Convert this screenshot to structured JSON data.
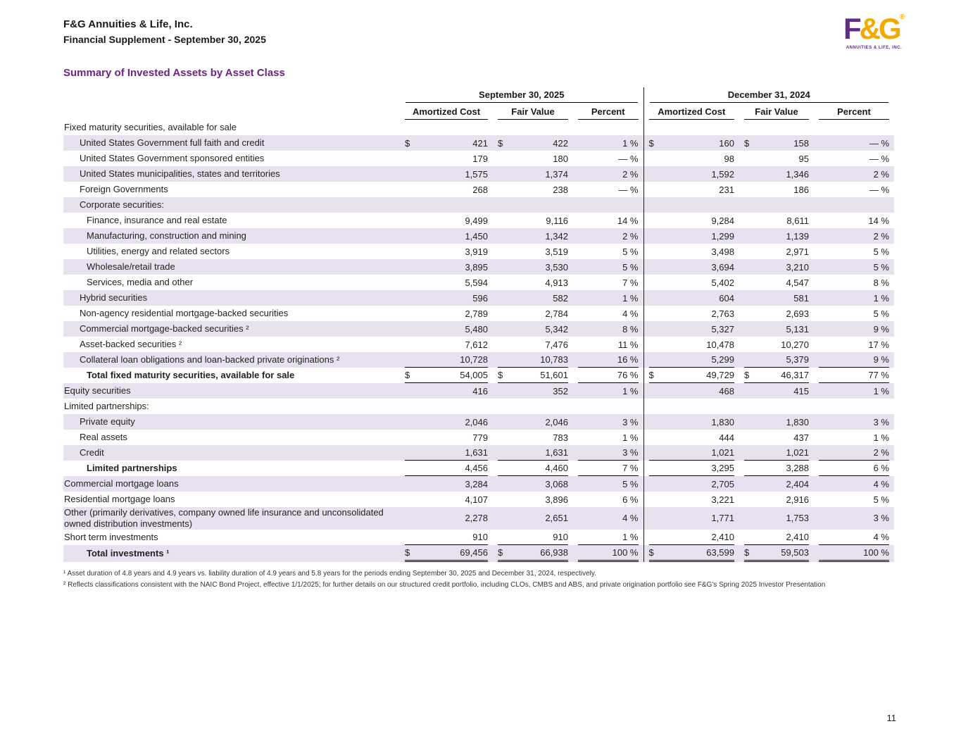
{
  "header": {
    "company": "F&G Annuities & Life, Inc.",
    "subtitle": "Financial Supplement - September 30, 2025"
  },
  "logo": {
    "part1": "F",
    "part2": "&G",
    "reg": "®",
    "tagline": "ANNUITIES & LIFE, INC."
  },
  "title": "Summary of Invested Assets by Asset Class",
  "colors": {
    "title_purple": "#6e2484",
    "row_shade": "#e8e2f0",
    "logo_purple": "#5f2c87",
    "logo_gold": "#f2a900"
  },
  "table": {
    "period_headers": [
      "September 30, 2025",
      "December 31, 2024"
    ],
    "column_headers": [
      "Amortized Cost",
      "Fair Value",
      "Percent"
    ],
    "rows": [
      {
        "label": "Fixed maturity securities, available for sale",
        "indent": 0,
        "values": null
      },
      {
        "label": "United States Government full faith and credit",
        "indent": 1,
        "dollars": true,
        "values": [
          "421",
          "422",
          "1 %",
          "160",
          "158",
          "— %"
        ]
      },
      {
        "label": "United States Government sponsored entities",
        "indent": 1,
        "values": [
          "179",
          "180",
          "— %",
          "98",
          "95",
          "— %"
        ]
      },
      {
        "label": "United States municipalities, states and territories",
        "indent": 1,
        "values": [
          "1,575",
          "1,374",
          "2 %",
          "1,592",
          "1,346",
          "2 %"
        ]
      },
      {
        "label": "Foreign Governments",
        "indent": 1,
        "values": [
          "268",
          "238",
          "— %",
          "231",
          "186",
          "— %"
        ]
      },
      {
        "label": "Corporate securities:",
        "indent": 1,
        "values": null
      },
      {
        "label": "Finance, insurance and real estate",
        "indent": 2,
        "values": [
          "9,499",
          "9,116",
          "14 %",
          "9,284",
          "8,611",
          "14 %"
        ]
      },
      {
        "label": "Manufacturing, construction and mining",
        "indent": 2,
        "values": [
          "1,450",
          "1,342",
          "2 %",
          "1,299",
          "1,139",
          "2 %"
        ]
      },
      {
        "label": "Utilities, energy and related sectors",
        "indent": 2,
        "values": [
          "3,919",
          "3,519",
          "5 %",
          "3,498",
          "2,971",
          "5 %"
        ]
      },
      {
        "label": "Wholesale/retail trade",
        "indent": 2,
        "values": [
          "3,895",
          "3,530",
          "5 %",
          "3,694",
          "3,210",
          "5 %"
        ]
      },
      {
        "label": "Services, media and other",
        "indent": 2,
        "values": [
          "5,594",
          "4,913",
          "7 %",
          "5,402",
          "4,547",
          "8 %"
        ]
      },
      {
        "label": "Hybrid securities",
        "indent": 1,
        "values": [
          "596",
          "582",
          "1 %",
          "604",
          "581",
          "1 %"
        ]
      },
      {
        "label": "Non-agency residential mortgage-backed securities",
        "indent": 1,
        "values": [
          "2,789",
          "2,784",
          "4 %",
          "2,763",
          "2,693",
          "5 %"
        ]
      },
      {
        "label": "Commercial mortgage-backed securities ²",
        "indent": 1,
        "values": [
          "5,480",
          "5,342",
          "8 %",
          "5,327",
          "5,131",
          "9 %"
        ]
      },
      {
        "label": "Asset-backed securities ²",
        "indent": 1,
        "values": [
          "7,612",
          "7,476",
          "11 %",
          "10,478",
          "10,270",
          "17 %"
        ]
      },
      {
        "label": "Collateral loan obligations and loan-backed private originations ²",
        "indent": 1,
        "values": [
          "10,728",
          "10,783",
          "16 %",
          "5,299",
          "5,379",
          "9 %"
        ],
        "rule": "below"
      },
      {
        "label": "Total fixed maturity securities, available for sale",
        "indent": 2,
        "bold": true,
        "dollars": true,
        "values": [
          "54,005",
          "51,601",
          "76 %",
          "49,729",
          "46,317",
          "77 %"
        ],
        "rule": "below"
      },
      {
        "label": "Equity securities",
        "indent": 0,
        "values": [
          "416",
          "352",
          "1 %",
          "468",
          "415",
          "1 %"
        ]
      },
      {
        "label": "Limited partnerships:",
        "indent": 0,
        "values": null
      },
      {
        "label": "Private equity",
        "indent": 1,
        "values": [
          "2,046",
          "2,046",
          "3 %",
          "1,830",
          "1,830",
          "3 %"
        ]
      },
      {
        "label": "Real assets",
        "indent": 1,
        "values": [
          "779",
          "783",
          "1 %",
          "444",
          "437",
          "1 %"
        ]
      },
      {
        "label": "Credit",
        "indent": 1,
        "values": [
          "1,631",
          "1,631",
          "3 %",
          "1,021",
          "1,021",
          "2 %"
        ],
        "rule": "below"
      },
      {
        "label": "Limited partnerships",
        "indent": 2,
        "bold": true,
        "values": [
          "4,456",
          "4,460",
          "7 %",
          "3,295",
          "3,288",
          "6 %"
        ],
        "rule": "below"
      },
      {
        "label": "Commercial mortgage loans",
        "indent": 0,
        "values": [
          "3,284",
          "3,068",
          "5 %",
          "2,705",
          "2,404",
          "4 %"
        ]
      },
      {
        "label": "Residential mortgage loans",
        "indent": 0,
        "values": [
          "4,107",
          "3,896",
          "6 %",
          "3,221",
          "2,916",
          "5 %"
        ]
      },
      {
        "label": "Other (primarily derivatives, company owned life insurance and unconsolidated owned distribution investments)",
        "indent": 0,
        "values": [
          "2,278",
          "2,651",
          "4 %",
          "1,771",
          "1,753",
          "3 %"
        ]
      },
      {
        "label": "Short term investments",
        "indent": 0,
        "values": [
          "910",
          "910",
          "1 %",
          "2,410",
          "2,410",
          "4 %"
        ],
        "rule": "below"
      },
      {
        "label": "Total investments ¹",
        "indent": 2,
        "bold": true,
        "dollars": true,
        "values": [
          "69,456",
          "66,938",
          "100 %",
          "63,599",
          "59,503",
          "100 %"
        ],
        "rule": "double"
      }
    ]
  },
  "footnotes": [
    "¹ Asset duration of 4.8 years and 4.9 years vs. liability duration of 4.9 years and 5.8 years for the periods ending September 30, 2025 and December 31, 2024, respectively.",
    "² Reflects classifications consistent with the NAIC Bond Project, effective 1/1/2025; for further details on our structured credit portfolio, including CLOs, CMBS and ABS, and private origination portfolio see F&G's Spring 2025 Investor Presentation"
  ],
  "page_number": "11"
}
